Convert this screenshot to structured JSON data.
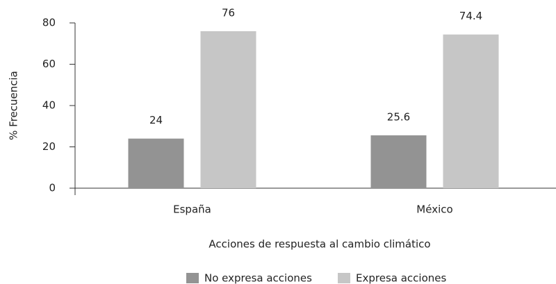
{
  "chart_data": {
    "type": "bar",
    "categories": [
      "España",
      "México"
    ],
    "series": [
      {
        "name": "No expresa acciones",
        "color": "#939393",
        "values": [
          24,
          25.6
        ]
      },
      {
        "name": "Expresa acciones",
        "color": "#c6c6c6",
        "values": [
          76,
          74.4
        ]
      }
    ],
    "ylim": [
      0,
      80
    ],
    "yticks": [
      0,
      20,
      40,
      60,
      80
    ],
    "ylabel": "% Frecuencia",
    "xlabel": "Acciones de respuesta al cambio climático",
    "grid": false,
    "legend": "bottom"
  }
}
